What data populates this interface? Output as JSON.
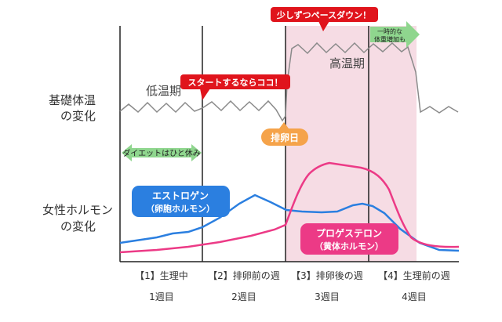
{
  "labels": {
    "bbt": [
      "基礎体温",
      "の変化"
    ],
    "hormone": [
      "女性ホルモン",
      "の変化"
    ],
    "low_phase": "低温期",
    "high_phase": "高温期",
    "ovulation_day": "排卵日"
  },
  "callouts": {
    "start": "スタートするならココ！",
    "pace_down": "少しずつペースダウン！",
    "diet_rest": "ダイエットはひと休み",
    "weight_gain": [
      "一時的な",
      "体重増加も"
    ]
  },
  "hormones": {
    "estrogen": [
      "エストロゲン",
      "（卵胞ホルモン）"
    ],
    "progesterone": [
      "プロゲステロン",
      "（黄体ホルモン）"
    ]
  },
  "weeks": [
    {
      "phase": "【1】生理中",
      "week": "1週目"
    },
    {
      "phase": "【2】排卵前の週",
      "week": "2週目"
    },
    {
      "phase": "【3】排卵後の週",
      "week": "3週目"
    },
    {
      "phase": "【4】生理前の週",
      "week": "4週目"
    }
  ],
  "colors": {
    "estrogen": "#2b7fe0",
    "progesterone": "#ec3a86",
    "callout_red": "#e0141c",
    "ovulation": "#f5a34a",
    "green_arrow": "#8fd68e",
    "high_band": "#f6dce4",
    "temperature_line": "#8a8a8a"
  }
}
